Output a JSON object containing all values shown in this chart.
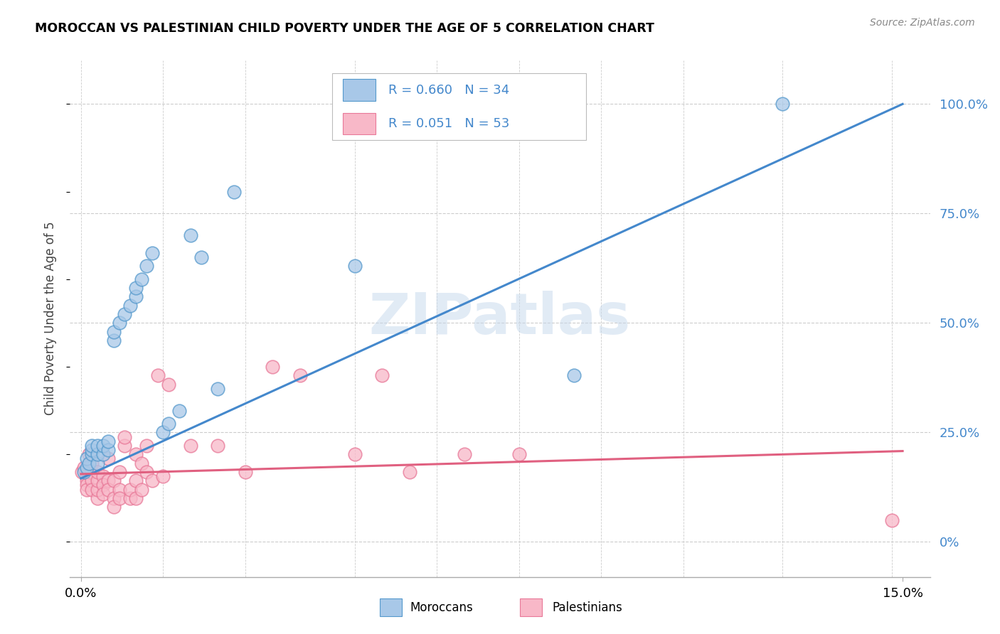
{
  "title": "MOROCCAN VS PALESTINIAN CHILD POVERTY UNDER THE AGE OF 5 CORRELATION CHART",
  "source": "Source: ZipAtlas.com",
  "ylabel": "Child Poverty Under the Age of 5",
  "ytick_labels": [
    "0%",
    "25.0%",
    "50.0%",
    "75.0%",
    "100.0%"
  ],
  "ytick_values": [
    0.0,
    0.25,
    0.5,
    0.75,
    1.0
  ],
  "xlim": [
    -0.002,
    0.155
  ],
  "ylim": [
    -0.08,
    1.1
  ],
  "moroccan_color": "#a8c8e8",
  "moroccan_edge": "#5599cc",
  "palestinian_color": "#f8b8c8",
  "palestinian_edge": "#e87898",
  "moroccan_line_color": "#4488cc",
  "palestinian_line_color": "#e06080",
  "watermark": "ZIPatlas",
  "background_color": "#ffffff",
  "grid_color": "#cccccc",
  "moroccan_x": [
    0.0005,
    0.001,
    0.001,
    0.0015,
    0.002,
    0.002,
    0.002,
    0.003,
    0.003,
    0.003,
    0.004,
    0.004,
    0.005,
    0.005,
    0.006,
    0.006,
    0.007,
    0.008,
    0.009,
    0.01,
    0.01,
    0.011,
    0.012,
    0.013,
    0.015,
    0.016,
    0.018,
    0.02,
    0.022,
    0.025,
    0.028,
    0.05,
    0.09,
    0.128
  ],
  "moroccan_y": [
    0.16,
    0.17,
    0.19,
    0.18,
    0.2,
    0.21,
    0.22,
    0.18,
    0.2,
    0.22,
    0.2,
    0.22,
    0.21,
    0.23,
    0.46,
    0.48,
    0.5,
    0.52,
    0.54,
    0.56,
    0.58,
    0.6,
    0.63,
    0.66,
    0.25,
    0.27,
    0.3,
    0.7,
    0.65,
    0.35,
    0.8,
    0.63,
    0.38,
    1.0
  ],
  "palestinian_x": [
    0.0002,
    0.0005,
    0.001,
    0.001,
    0.001,
    0.001,
    0.0015,
    0.002,
    0.002,
    0.002,
    0.002,
    0.003,
    0.003,
    0.003,
    0.003,
    0.004,
    0.004,
    0.004,
    0.005,
    0.005,
    0.005,
    0.006,
    0.006,
    0.006,
    0.007,
    0.007,
    0.007,
    0.008,
    0.008,
    0.009,
    0.009,
    0.01,
    0.01,
    0.01,
    0.011,
    0.011,
    0.012,
    0.012,
    0.013,
    0.014,
    0.015,
    0.016,
    0.02,
    0.025,
    0.03,
    0.035,
    0.04,
    0.05,
    0.055,
    0.06,
    0.07,
    0.08,
    0.148
  ],
  "palestinian_y": [
    0.16,
    0.17,
    0.15,
    0.14,
    0.13,
    0.12,
    0.2,
    0.16,
    0.18,
    0.14,
    0.12,
    0.1,
    0.12,
    0.14,
    0.16,
    0.15,
    0.13,
    0.11,
    0.19,
    0.14,
    0.12,
    0.1,
    0.08,
    0.14,
    0.12,
    0.16,
    0.1,
    0.22,
    0.24,
    0.1,
    0.12,
    0.2,
    0.14,
    0.1,
    0.18,
    0.12,
    0.22,
    0.16,
    0.14,
    0.38,
    0.15,
    0.36,
    0.22,
    0.22,
    0.16,
    0.4,
    0.38,
    0.2,
    0.38,
    0.16,
    0.2,
    0.2,
    0.05
  ],
  "blue_line_intercept": 0.145,
  "blue_line_slope": 5.7,
  "pink_line_intercept": 0.155,
  "pink_line_slope": 0.35
}
